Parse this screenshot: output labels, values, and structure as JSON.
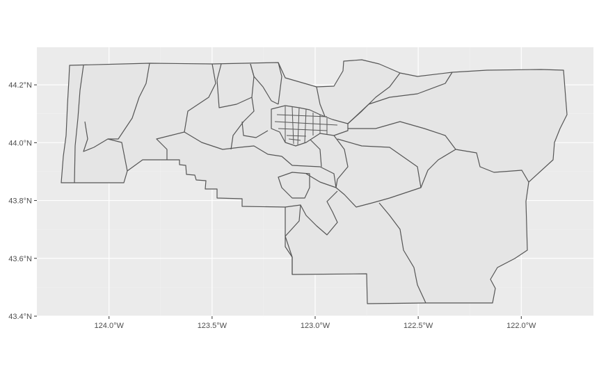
{
  "map": {
    "projection": "longitude/latitude",
    "x_axis": {
      "min": -124.35,
      "max": -121.65,
      "ticks": [
        -124.0,
        -123.5,
        -123.0,
        -122.5,
        -122.0
      ],
      "tick_labels": [
        "124.0°W",
        "123.5°W",
        "123.0°W",
        "122.5°W",
        "122.0°W"
      ]
    },
    "y_axis": {
      "min": 43.4,
      "max": 44.33,
      "ticks": [
        43.4,
        43.6,
        43.8,
        44.0,
        44.2
      ],
      "tick_labels": [
        "43.4°N",
        "43.6°N",
        "43.8°N",
        "44.0°N",
        "44.2°N"
      ]
    },
    "panel_background": "#ebebeb",
    "grid_major_color": "#ffffff",
    "polygon_fill": "#e5e5e5",
    "polygon_stroke": "#555555",
    "region_count": 27,
    "grid": true
  }
}
